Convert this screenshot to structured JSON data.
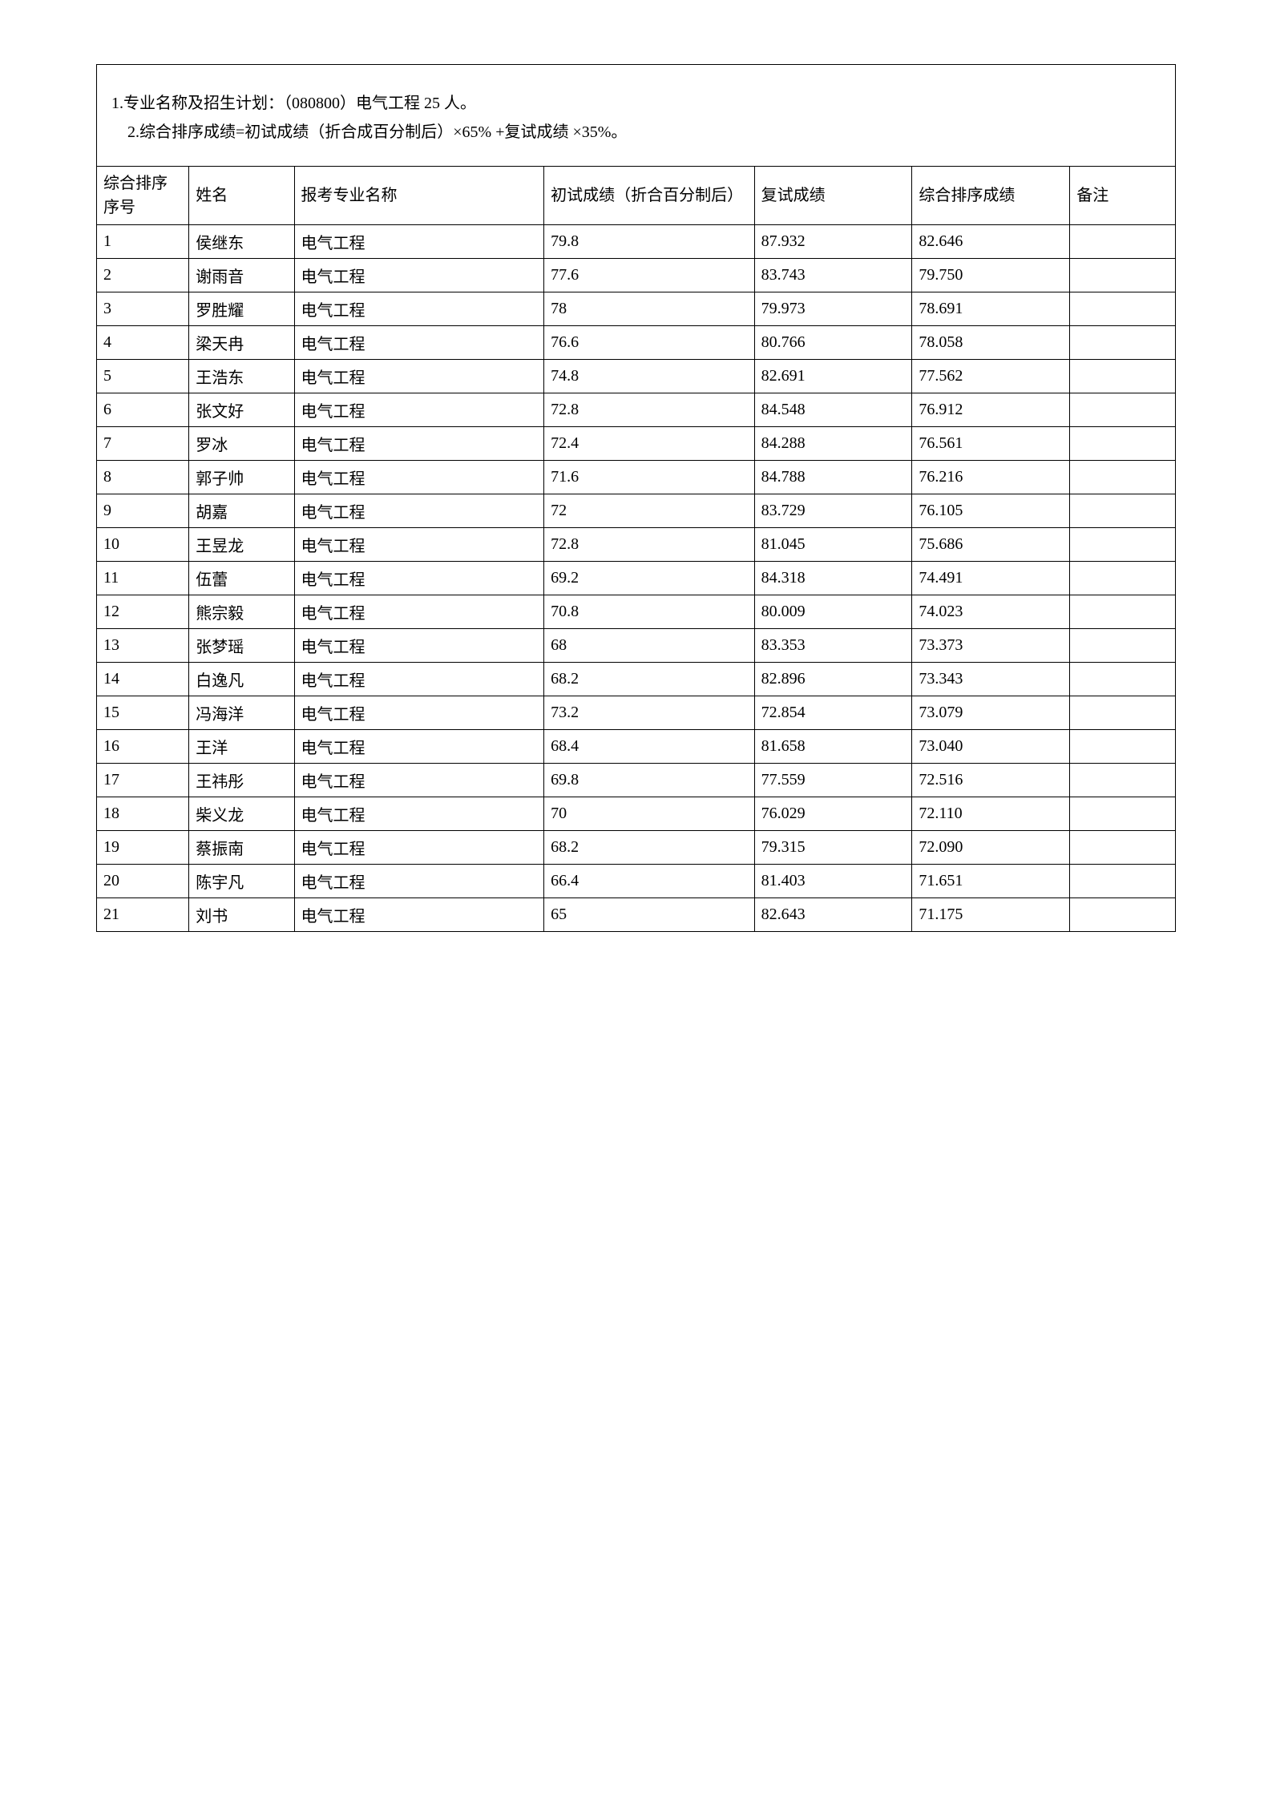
{
  "header": {
    "line1": "1.专业名称及招生计划：（080800）电气工程 25 人。",
    "line2": "2.综合排序成绩=初试成绩（折合成百分制后）×65%  +复试成绩 ×35%。"
  },
  "table": {
    "columns": {
      "rank": "综合排序序号",
      "name": "姓名",
      "major": "报考专业名称",
      "prelim": "初试成绩（折合百分制后）",
      "retest": "复试成绩",
      "total": "综合排序成绩",
      "remark": "备注"
    },
    "rows": [
      {
        "rank": "1",
        "name": "侯继东",
        "major": "电气工程",
        "prelim": "79.8",
        "retest": "87.932",
        "total": "82.646",
        "remark": ""
      },
      {
        "rank": "2",
        "name": "谢雨音",
        "major": "电气工程",
        "prelim": "77.6",
        "retest": "83.743",
        "total": "79.750",
        "remark": ""
      },
      {
        "rank": "3",
        "name": "罗胜耀",
        "major": "电气工程",
        "prelim": "78",
        "retest": "79.973",
        "total": "78.691",
        "remark": ""
      },
      {
        "rank": "4",
        "name": "梁天冉",
        "major": "电气工程",
        "prelim": "76.6",
        "retest": "80.766",
        "total": "78.058",
        "remark": ""
      },
      {
        "rank": "5",
        "name": "王浩东",
        "major": "电气工程",
        "prelim": "74.8",
        "retest": "82.691",
        "total": "77.562",
        "remark": ""
      },
      {
        "rank": "6",
        "name": "张文好",
        "major": "电气工程",
        "prelim": "72.8",
        "retest": "84.548",
        "total": "76.912",
        "remark": ""
      },
      {
        "rank": "7",
        "name": "罗冰",
        "major": "电气工程",
        "prelim": "72.4",
        "retest": "84.288",
        "total": "76.561",
        "remark": ""
      },
      {
        "rank": "8",
        "name": "郭子帅",
        "major": "电气工程",
        "prelim": "71.6",
        "retest": "84.788",
        "total": "76.216",
        "remark": ""
      },
      {
        "rank": "9",
        "name": "胡嘉",
        "major": "电气工程",
        "prelim": "72",
        "retest": "83.729",
        "total": "76.105",
        "remark": ""
      },
      {
        "rank": "10",
        "name": "王昱龙",
        "major": "电气工程",
        "prelim": "72.8",
        "retest": "81.045",
        "total": "75.686",
        "remark": ""
      },
      {
        "rank": "11",
        "name": "伍蕾",
        "major": "电气工程",
        "prelim": "69.2",
        "retest": "84.318",
        "total": "74.491",
        "remark": ""
      },
      {
        "rank": "12",
        "name": "熊宗毅",
        "major": "电气工程",
        "prelim": "70.8",
        "retest": "80.009",
        "total": "74.023",
        "remark": ""
      },
      {
        "rank": "13",
        "name": "张梦瑶",
        "major": "电气工程",
        "prelim": "68",
        "retest": "83.353",
        "total": "73.373",
        "remark": ""
      },
      {
        "rank": "14",
        "name": "白逸凡",
        "major": "电气工程",
        "prelim": "68.2",
        "retest": "82.896",
        "total": "73.343",
        "remark": ""
      },
      {
        "rank": "15",
        "name": "冯海洋",
        "major": "电气工程",
        "prelim": "73.2",
        "retest": "72.854",
        "total": "73.079",
        "remark": ""
      },
      {
        "rank": "16",
        "name": "王洋",
        "major": "电气工程",
        "prelim": "68.4",
        "retest": "81.658",
        "total": "73.040",
        "remark": ""
      },
      {
        "rank": "17",
        "name": "王祎彤",
        "major": "电气工程",
        "prelim": "69.8",
        "retest": "77.559",
        "total": "72.516",
        "remark": ""
      },
      {
        "rank": "18",
        "name": "柴义龙",
        "major": "电气工程",
        "prelim": "70",
        "retest": "76.029",
        "total": "72.110",
        "remark": ""
      },
      {
        "rank": "19",
        "name": "蔡振南",
        "major": "电气工程",
        "prelim": "68.2",
        "retest": "79.315",
        "total": "72.090",
        "remark": ""
      },
      {
        "rank": "20",
        "name": "陈宇凡",
        "major": "电气工程",
        "prelim": "66.4",
        "retest": "81.403",
        "total": "71.651",
        "remark": ""
      },
      {
        "rank": "21",
        "name": "刘书",
        "major": "电气工程",
        "prelim": "65",
        "retest": "82.643",
        "total": "71.175",
        "remark": ""
      }
    ]
  }
}
